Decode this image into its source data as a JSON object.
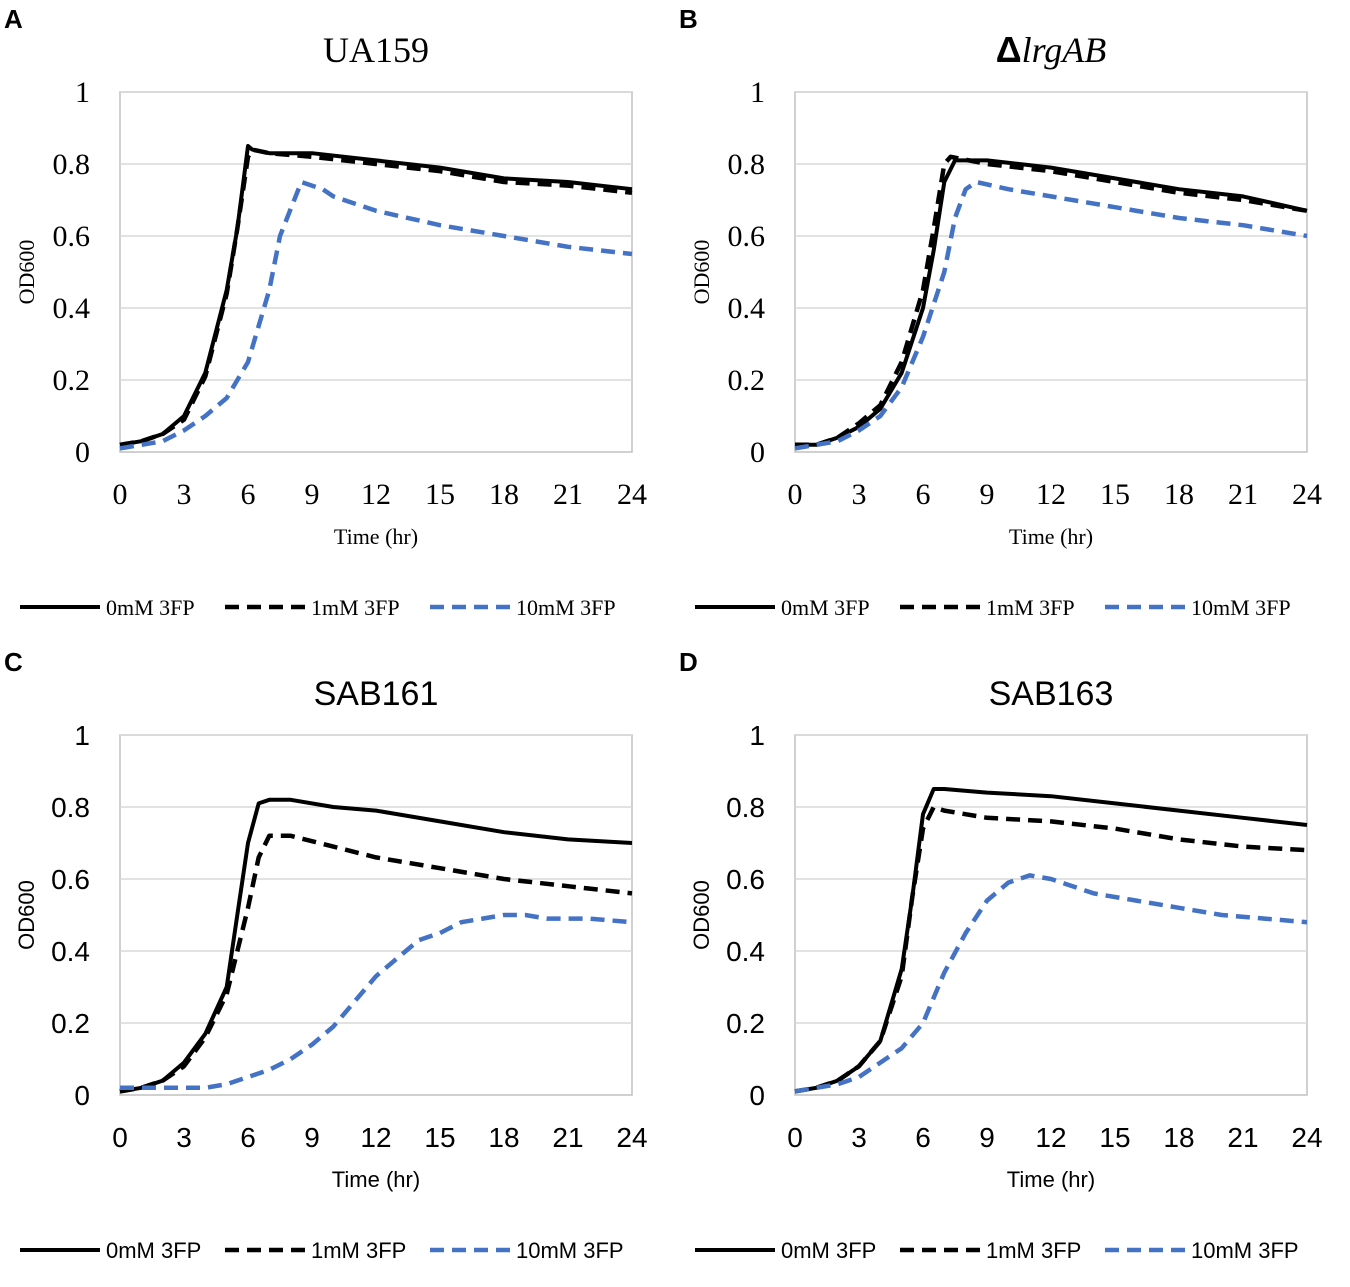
{
  "chart_data": [
    {
      "type": "line",
      "panel_label": "A",
      "title": "UA159",
      "title_prefix": "",
      "xlabel": "Time (hr)",
      "ylabel": "OD600",
      "xlim": [
        0,
        24
      ],
      "ylim": [
        0,
        1
      ],
      "x_ticks": [
        "0",
        "3",
        "6",
        "9",
        "12",
        "15",
        "18",
        "21",
        "24"
      ],
      "y_ticks": [
        "0",
        "0.2",
        "0.4",
        "0.6",
        "0.8",
        "1"
      ],
      "font": "serif",
      "legend_position": "bottom",
      "series": [
        {
          "name": "0mM 3FP",
          "color": "#000000",
          "style": "solid",
          "points": [
            [
              0,
              0.02
            ],
            [
              1,
              0.03
            ],
            [
              2,
              0.05
            ],
            [
              3,
              0.1
            ],
            [
              4,
              0.22
            ],
            [
              5,
              0.45
            ],
            [
              5.5,
              0.62
            ],
            [
              6,
              0.85
            ],
            [
              6.2,
              0.84
            ],
            [
              7,
              0.83
            ],
            [
              9,
              0.83
            ],
            [
              12,
              0.81
            ],
            [
              15,
              0.79
            ],
            [
              18,
              0.76
            ],
            [
              21,
              0.75
            ],
            [
              24,
              0.73
            ]
          ]
        },
        {
          "name": "1mM 3FP",
          "color": "#000000",
          "style": "dashed",
          "points": [
            [
              0,
              0.02
            ],
            [
              1,
              0.03
            ],
            [
              2,
              0.05
            ],
            [
              3,
              0.09
            ],
            [
              4,
              0.21
            ],
            [
              5,
              0.44
            ],
            [
              5.5,
              0.62
            ],
            [
              6,
              0.82
            ],
            [
              6.2,
              0.84
            ],
            [
              7,
              0.83
            ],
            [
              9,
              0.82
            ],
            [
              12,
              0.8
            ],
            [
              15,
              0.78
            ],
            [
              18,
              0.75
            ],
            [
              21,
              0.74
            ],
            [
              24,
              0.72
            ]
          ]
        },
        {
          "name": "10mM 3FP",
          "color": "#4472C4",
          "style": "dashed",
          "points": [
            [
              0,
              0.01
            ],
            [
              1,
              0.02
            ],
            [
              2,
              0.03
            ],
            [
              3,
              0.06
            ],
            [
              4,
              0.1
            ],
            [
              5,
              0.15
            ],
            [
              6,
              0.25
            ],
            [
              7,
              0.45
            ],
            [
              7.5,
              0.6
            ],
            [
              8.5,
              0.75
            ],
            [
              9.5,
              0.73
            ],
            [
              10,
              0.71
            ],
            [
              12,
              0.67
            ],
            [
              15,
              0.63
            ],
            [
              18,
              0.6
            ],
            [
              21,
              0.57
            ],
            [
              24,
              0.55
            ]
          ]
        }
      ]
    },
    {
      "type": "line",
      "panel_label": "B",
      "title": "lrgAB",
      "title_prefix": "Δ",
      "xlabel": "Time (hr)",
      "ylabel": "OD600",
      "xlim": [
        0,
        24
      ],
      "ylim": [
        0,
        1
      ],
      "x_ticks": [
        "0",
        "3",
        "6",
        "9",
        "12",
        "15",
        "18",
        "21",
        "24"
      ],
      "y_ticks": [
        "0",
        "0.2",
        "0.4",
        "0.6",
        "0.8",
        "1"
      ],
      "font": "serif",
      "legend_position": "bottom",
      "series": [
        {
          "name": "0mM 3FP",
          "color": "#000000",
          "style": "solid",
          "points": [
            [
              0,
              0.02
            ],
            [
              1,
              0.02
            ],
            [
              2,
              0.04
            ],
            [
              3,
              0.07
            ],
            [
              4,
              0.12
            ],
            [
              5,
              0.22
            ],
            [
              6,
              0.4
            ],
            [
              6.5,
              0.56
            ],
            [
              7,
              0.75
            ],
            [
              7.5,
              0.81
            ],
            [
              9,
              0.81
            ],
            [
              12,
              0.79
            ],
            [
              15,
              0.76
            ],
            [
              18,
              0.73
            ],
            [
              21,
              0.71
            ],
            [
              24,
              0.67
            ]
          ]
        },
        {
          "name": "1mM 3FP",
          "color": "#000000",
          "style": "dashed",
          "points": [
            [
              0,
              0.02
            ],
            [
              1,
              0.02
            ],
            [
              2,
              0.04
            ],
            [
              3,
              0.08
            ],
            [
              4,
              0.13
            ],
            [
              5,
              0.25
            ],
            [
              6,
              0.45
            ],
            [
              6.5,
              0.62
            ],
            [
              7,
              0.8
            ],
            [
              7.3,
              0.82
            ],
            [
              9,
              0.8
            ],
            [
              12,
              0.78
            ],
            [
              15,
              0.75
            ],
            [
              18,
              0.72
            ],
            [
              21,
              0.7
            ],
            [
              24,
              0.67
            ]
          ]
        },
        {
          "name": "10mM 3FP",
          "color": "#4472C4",
          "style": "dashed",
          "points": [
            [
              0,
              0.01
            ],
            [
              1,
              0.02
            ],
            [
              2,
              0.03
            ],
            [
              3,
              0.06
            ],
            [
              4,
              0.1
            ],
            [
              5,
              0.18
            ],
            [
              6,
              0.32
            ],
            [
              7,
              0.5
            ],
            [
              7.5,
              0.65
            ],
            [
              8,
              0.73
            ],
            [
              8.5,
              0.75
            ],
            [
              10,
              0.73
            ],
            [
              12,
              0.71
            ],
            [
              15,
              0.68
            ],
            [
              18,
              0.65
            ],
            [
              21,
              0.63
            ],
            [
              24,
              0.6
            ]
          ]
        }
      ]
    },
    {
      "type": "line",
      "panel_label": "C",
      "title": "SAB161",
      "title_prefix": "",
      "xlabel": "Time (hr)",
      "ylabel": "OD600",
      "xlim": [
        0,
        24
      ],
      "ylim": [
        0,
        1
      ],
      "x_ticks": [
        "0",
        "3",
        "6",
        "9",
        "12",
        "15",
        "18",
        "21",
        "24"
      ],
      "y_ticks": [
        "0",
        "0.2",
        "0.4",
        "0.6",
        "0.8",
        "1"
      ],
      "font": "sans",
      "legend_position": "bottom",
      "series": [
        {
          "name": "0mM 3FP",
          "color": "#000000",
          "style": "solid",
          "points": [
            [
              0,
              0.01
            ],
            [
              1,
              0.02
            ],
            [
              2,
              0.04
            ],
            [
              3,
              0.09
            ],
            [
              4,
              0.17
            ],
            [
              5,
              0.3
            ],
            [
              5.5,
              0.5
            ],
            [
              6,
              0.7
            ],
            [
              6.5,
              0.81
            ],
            [
              7,
              0.82
            ],
            [
              8,
              0.82
            ],
            [
              10,
              0.8
            ],
            [
              12,
              0.79
            ],
            [
              15,
              0.76
            ],
            [
              18,
              0.73
            ],
            [
              21,
              0.71
            ],
            [
              24,
              0.7
            ]
          ]
        },
        {
          "name": "1mM 3FP",
          "color": "#000000",
          "style": "dashed",
          "points": [
            [
              0,
              0.01
            ],
            [
              1,
              0.02
            ],
            [
              2,
              0.04
            ],
            [
              3,
              0.08
            ],
            [
              4,
              0.16
            ],
            [
              5,
              0.28
            ],
            [
              6,
              0.52
            ],
            [
              6.5,
              0.66
            ],
            [
              7,
              0.72
            ],
            [
              8,
              0.72
            ],
            [
              10,
              0.69
            ],
            [
              12,
              0.66
            ],
            [
              15,
              0.63
            ],
            [
              18,
              0.6
            ],
            [
              21,
              0.58
            ],
            [
              24,
              0.56
            ]
          ]
        },
        {
          "name": "10mM 3FP",
          "color": "#4472C4",
          "style": "dashed",
          "points": [
            [
              0,
              0.02
            ],
            [
              1,
              0.02
            ],
            [
              2,
              0.02
            ],
            [
              3,
              0.02
            ],
            [
              4,
              0.02
            ],
            [
              5,
              0.03
            ],
            [
              6,
              0.05
            ],
            [
              7,
              0.07
            ],
            [
              8,
              0.1
            ],
            [
              9,
              0.14
            ],
            [
              10,
              0.19
            ],
            [
              11,
              0.26
            ],
            [
              12,
              0.33
            ],
            [
              13,
              0.38
            ],
            [
              14,
              0.43
            ],
            [
              15,
              0.45
            ],
            [
              16,
              0.48
            ],
            [
              17,
              0.49
            ],
            [
              18,
              0.5
            ],
            [
              19,
              0.5
            ],
            [
              20,
              0.49
            ],
            [
              22,
              0.49
            ],
            [
              24,
              0.48
            ]
          ]
        }
      ]
    },
    {
      "type": "line",
      "panel_label": "D",
      "title": "SAB163",
      "title_prefix": "",
      "xlabel": "Time (hr)",
      "ylabel": "OD600",
      "xlim": [
        0,
        24
      ],
      "ylim": [
        0,
        1
      ],
      "x_ticks": [
        "0",
        "3",
        "6",
        "9",
        "12",
        "15",
        "18",
        "21",
        "24"
      ],
      "y_ticks": [
        "0",
        "0.2",
        "0.4",
        "0.6",
        "0.8",
        "1"
      ],
      "font": "sans",
      "legend_position": "bottom",
      "series": [
        {
          "name": "0mM 3FP",
          "color": "#000000",
          "style": "solid",
          "points": [
            [
              0,
              0.01
            ],
            [
              1,
              0.02
            ],
            [
              2,
              0.04
            ],
            [
              3,
              0.08
            ],
            [
              4,
              0.15
            ],
            [
              5,
              0.35
            ],
            [
              5.5,
              0.55
            ],
            [
              6,
              0.78
            ],
            [
              6.5,
              0.85
            ],
            [
              7,
              0.85
            ],
            [
              9,
              0.84
            ],
            [
              12,
              0.83
            ],
            [
              15,
              0.81
            ],
            [
              18,
              0.79
            ],
            [
              21,
              0.77
            ],
            [
              24,
              0.75
            ]
          ]
        },
        {
          "name": "1mM 3FP",
          "color": "#000000",
          "style": "dashed",
          "points": [
            [
              0,
              0.01
            ],
            [
              1,
              0.02
            ],
            [
              2,
              0.04
            ],
            [
              3,
              0.08
            ],
            [
              4,
              0.15
            ],
            [
              5,
              0.33
            ],
            [
              5.5,
              0.55
            ],
            [
              6,
              0.74
            ],
            [
              6.5,
              0.8
            ],
            [
              7,
              0.79
            ],
            [
              9,
              0.77
            ],
            [
              12,
              0.76
            ],
            [
              15,
              0.74
            ],
            [
              18,
              0.71
            ],
            [
              21,
              0.69
            ],
            [
              24,
              0.68
            ]
          ]
        },
        {
          "name": "10mM 3FP",
          "color": "#4472C4",
          "style": "dashed",
          "points": [
            [
              0,
              0.01
            ],
            [
              1,
              0.02
            ],
            [
              2,
              0.03
            ],
            [
              3,
              0.05
            ],
            [
              4,
              0.09
            ],
            [
              5,
              0.13
            ],
            [
              6,
              0.2
            ],
            [
              7,
              0.34
            ],
            [
              8,
              0.45
            ],
            [
              9,
              0.54
            ],
            [
              10,
              0.59
            ],
            [
              11,
              0.61
            ],
            [
              12,
              0.6
            ],
            [
              14,
              0.56
            ],
            [
              16,
              0.54
            ],
            [
              18,
              0.52
            ],
            [
              20,
              0.5
            ],
            [
              22,
              0.49
            ],
            [
              24,
              0.48
            ]
          ]
        }
      ]
    }
  ]
}
